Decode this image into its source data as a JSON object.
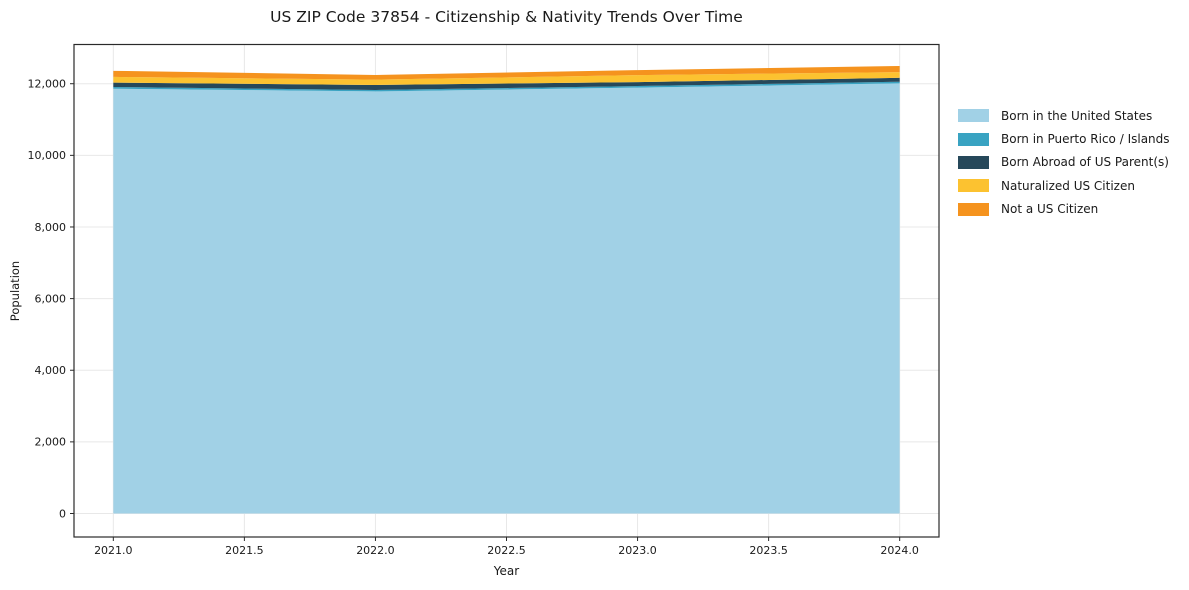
{
  "chart_data": {
    "type": "area",
    "stacked": true,
    "title": "US ZIP Code 37854 - Citizenship & Nativity Trends Over Time",
    "xlabel": "Year",
    "ylabel": "Population",
    "x": [
      2021,
      2022,
      2023,
      2024
    ],
    "series": [
      {
        "name": "Born in the United States",
        "color": "#A1D1E6",
        "values": [
          11860,
          11785,
          11890,
          12010
        ]
      },
      {
        "name": "Born in Puerto Rico / Islands",
        "color": "#39A3C2",
        "values": [
          50,
          40,
          45,
          45
        ]
      },
      {
        "name": "Born Abroad of US Parent(s)",
        "color": "#26485A",
        "values": [
          120,
          140,
          110,
          110
        ]
      },
      {
        "name": "Naturalized US Citizen",
        "color": "#FCC230",
        "values": [
          160,
          150,
          195,
          160
        ]
      },
      {
        "name": "Not a US Citizen",
        "color": "#F5931E",
        "values": [
          170,
          130,
          140,
          170
        ]
      }
    ],
    "x_ticks": {
      "values": [
        2021,
        2021.5,
        2022,
        2022.5,
        2023,
        2023.5,
        2024
      ],
      "labels": [
        "2021.0",
        "2021.5",
        "2022.0",
        "2022.5",
        "2023.0",
        "2023.5",
        "2024.0"
      ]
    },
    "y_ticks": {
      "values": [
        0,
        2000,
        4000,
        6000,
        8000,
        10000,
        12000
      ],
      "labels": [
        "0",
        "2,000",
        "4,000",
        "6,000",
        "8,000",
        "10,000",
        "12,000"
      ]
    },
    "xlim": [
      2020.85,
      2024.15
    ],
    "ylim": [
      -656,
      13095
    ],
    "grid": true,
    "legend_position": "outside-right",
    "colors": {
      "grid": "#e8e8e8",
      "spine": "#2a2a2a",
      "text": "#1a1a1a",
      "background": "#ffffff"
    }
  }
}
